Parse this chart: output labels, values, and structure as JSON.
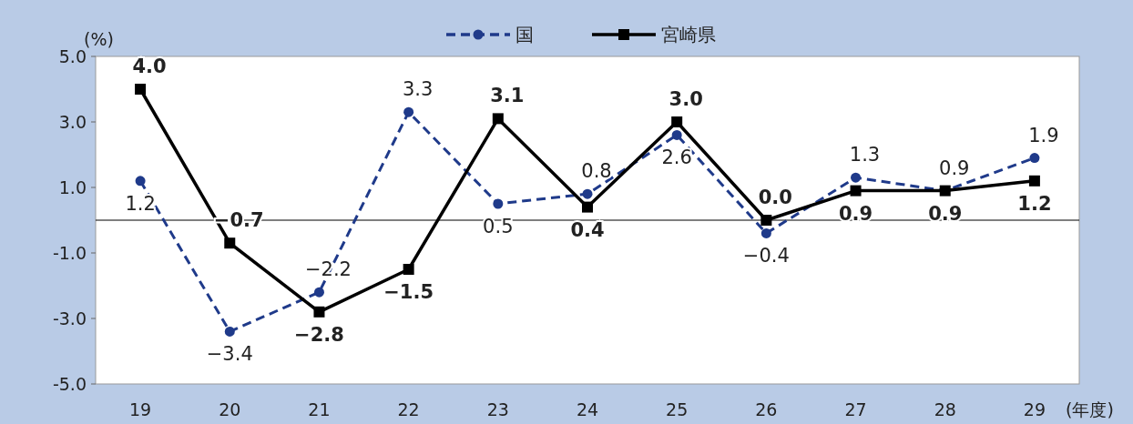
{
  "chart_data": {
    "type": "line",
    "ylabel": "(%)",
    "xlabel": "(年度)",
    "categories": [
      "19",
      "20",
      "21",
      "22",
      "23",
      "24",
      "25",
      "26",
      "27",
      "28",
      "29"
    ],
    "ylim": [
      -5,
      5
    ],
    "yticks": [
      {
        "value": -5,
        "label": "-5.0"
      },
      {
        "value": -3,
        "label": "-3.0"
      },
      {
        "value": -1,
        "label": "-1.0"
      },
      {
        "value": 1,
        "label": "1.0"
      },
      {
        "value": 3,
        "label": "3.0"
      },
      {
        "value": 5,
        "label": "5.0"
      }
    ],
    "grid": false,
    "legend": "top",
    "ref_lines": [
      {
        "axis": "y",
        "value": 0,
        "color": "#000000"
      }
    ],
    "series": [
      {
        "name": "国",
        "color": "#1f3a8a",
        "marker": "circle",
        "line_style": "dashed",
        "values": [
          1.2,
          -3.4,
          -2.2,
          3.3,
          0.5,
          0.8,
          2.6,
          -0.4,
          1.3,
          0.9,
          1.9
        ],
        "value_labels": [
          "1.2",
          "−3.4",
          "−2.2",
          "3.3",
          "0.5",
          "0.8",
          "2.6",
          "−0.4",
          "1.3",
          "0.9",
          "1.9"
        ]
      },
      {
        "name": "宮崎県",
        "color": "#000000",
        "marker": "square",
        "line_style": "solid",
        "values": [
          4.0,
          -0.7,
          -2.8,
          -1.5,
          3.1,
          0.4,
          3.0,
          0.0,
          0.9,
          0.9,
          1.2
        ],
        "value_labels": [
          "4.0",
          "−0.7",
          "−2.8",
          "−1.5",
          "3.1",
          "0.4",
          "3.0",
          "0.0",
          "0.9",
          "0.9",
          "1.2"
        ]
      }
    ]
  }
}
